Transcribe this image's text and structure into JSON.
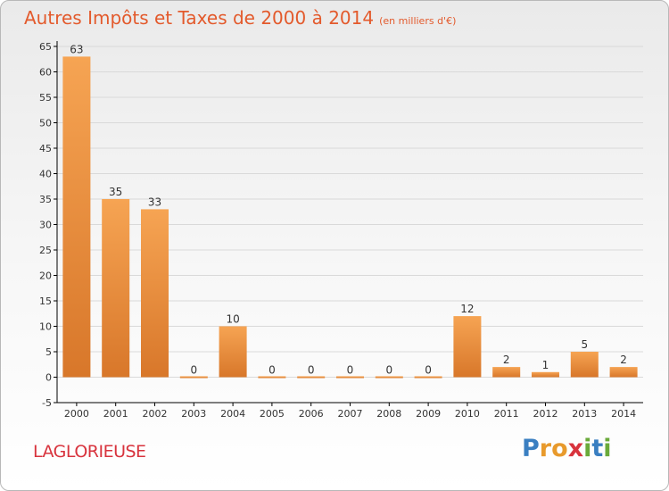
{
  "title": "Autres Impôts et Taxes de 2000 à 2014",
  "subtitle": "(en milliers d'€)",
  "commune": "LAGLORIEUSE",
  "brand": {
    "letters": [
      "P",
      "r",
      "o",
      "x",
      "i",
      "t",
      "i"
    ],
    "colors": [
      "#3a7fc1",
      "#e89a2c",
      "#e89a2c",
      "#d8333d",
      "#6aaa3a",
      "#3a7fc1",
      "#6aaa3a"
    ]
  },
  "colors": {
    "bar_light": "#f6a453",
    "bar_dark": "#d8772a",
    "axis": "#000000",
    "grid": "#d9d9d9",
    "label": "#333333"
  },
  "chart_data": {
    "type": "bar",
    "title": "Autres Impôts et Taxes de 2000 à 2014",
    "subtitle": "(en milliers d'€)",
    "categories": [
      "2000",
      "2001",
      "2002",
      "2003",
      "2004",
      "2005",
      "2006",
      "2007",
      "2008",
      "2009",
      "2010",
      "2011",
      "2012",
      "2013",
      "2014"
    ],
    "values": [
      63,
      35,
      33,
      0,
      10,
      0,
      0,
      0,
      0,
      0,
      12,
      2,
      1,
      5,
      2
    ],
    "data_labels": [
      "63",
      "35",
      "33",
      "0",
      "10",
      "0",
      "0",
      "0",
      "0",
      "0",
      "12",
      "2",
      "1",
      "5",
      "2"
    ],
    "ylim": [
      -5,
      65
    ],
    "yticks": [
      -5,
      0,
      5,
      10,
      15,
      20,
      25,
      30,
      35,
      40,
      45,
      50,
      55,
      60,
      65
    ],
    "xlabel": "",
    "ylabel": "",
    "grid": true,
    "legend": "none"
  }
}
